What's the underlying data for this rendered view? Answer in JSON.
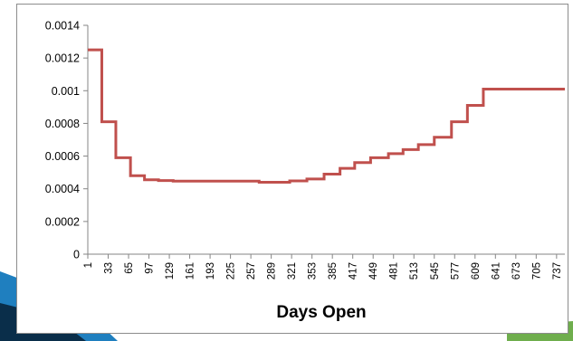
{
  "chart_data": {
    "type": "line",
    "title": "",
    "xlabel": "Days Open",
    "ylabel": "",
    "ylim": [
      0,
      0.0014
    ],
    "y_ticks": [
      "0",
      "0.0002",
      "0.0004",
      "0.0006",
      "0.0008",
      "0.001",
      "0.0012",
      "0.0014"
    ],
    "y_tick_values": [
      0,
      0.0002,
      0.0004,
      0.0006,
      0.0008,
      0.001,
      0.0012,
      0.0014
    ],
    "x_ticks": [
      "1",
      "33",
      "65",
      "97",
      "129",
      "161",
      "193",
      "225",
      "257",
      "289",
      "321",
      "353",
      "385",
      "417",
      "449",
      "481",
      "513",
      "545",
      "577",
      "609",
      "641",
      "673",
      "705",
      "737"
    ],
    "xlim": [
      1,
      750
    ],
    "step": true,
    "grid": false,
    "legend": "none",
    "series": [
      {
        "color": "#c0504d",
        "x": [
          1,
          23,
          23,
          45,
          45,
          68,
          68,
          90,
          90,
          112,
          112,
          135,
          135,
          185,
          185,
          270,
          270,
          318,
          318,
          345,
          345,
          372,
          372,
          397,
          397,
          420,
          420,
          445,
          445,
          473,
          473,
          496,
          496,
          520,
          520,
          545,
          545,
          572,
          572,
          597,
          597,
          622,
          622,
          648,
          648,
          672,
          672,
          750
        ],
        "y": [
          0.00125,
          0.00125,
          0.00081,
          0.00081,
          0.00059,
          0.00059,
          0.00048,
          0.00048,
          0.000455,
          0.000455,
          0.00045,
          0.00045,
          0.000447,
          0.000447,
          0.000447,
          0.000447,
          0.00044,
          0.00044,
          0.000448,
          0.000448,
          0.00046,
          0.00046,
          0.00049,
          0.00049,
          0.000525,
          0.000525,
          0.00056,
          0.00056,
          0.00059,
          0.00059,
          0.000615,
          0.000615,
          0.00064,
          0.00064,
          0.00067,
          0.00067,
          0.000715,
          0.000715,
          0.00081,
          0.00081,
          0.00091,
          0.00091,
          0.00101,
          0.00101,
          0.00101,
          0.00101,
          0.00101,
          0.00101
        ]
      }
    ]
  }
}
